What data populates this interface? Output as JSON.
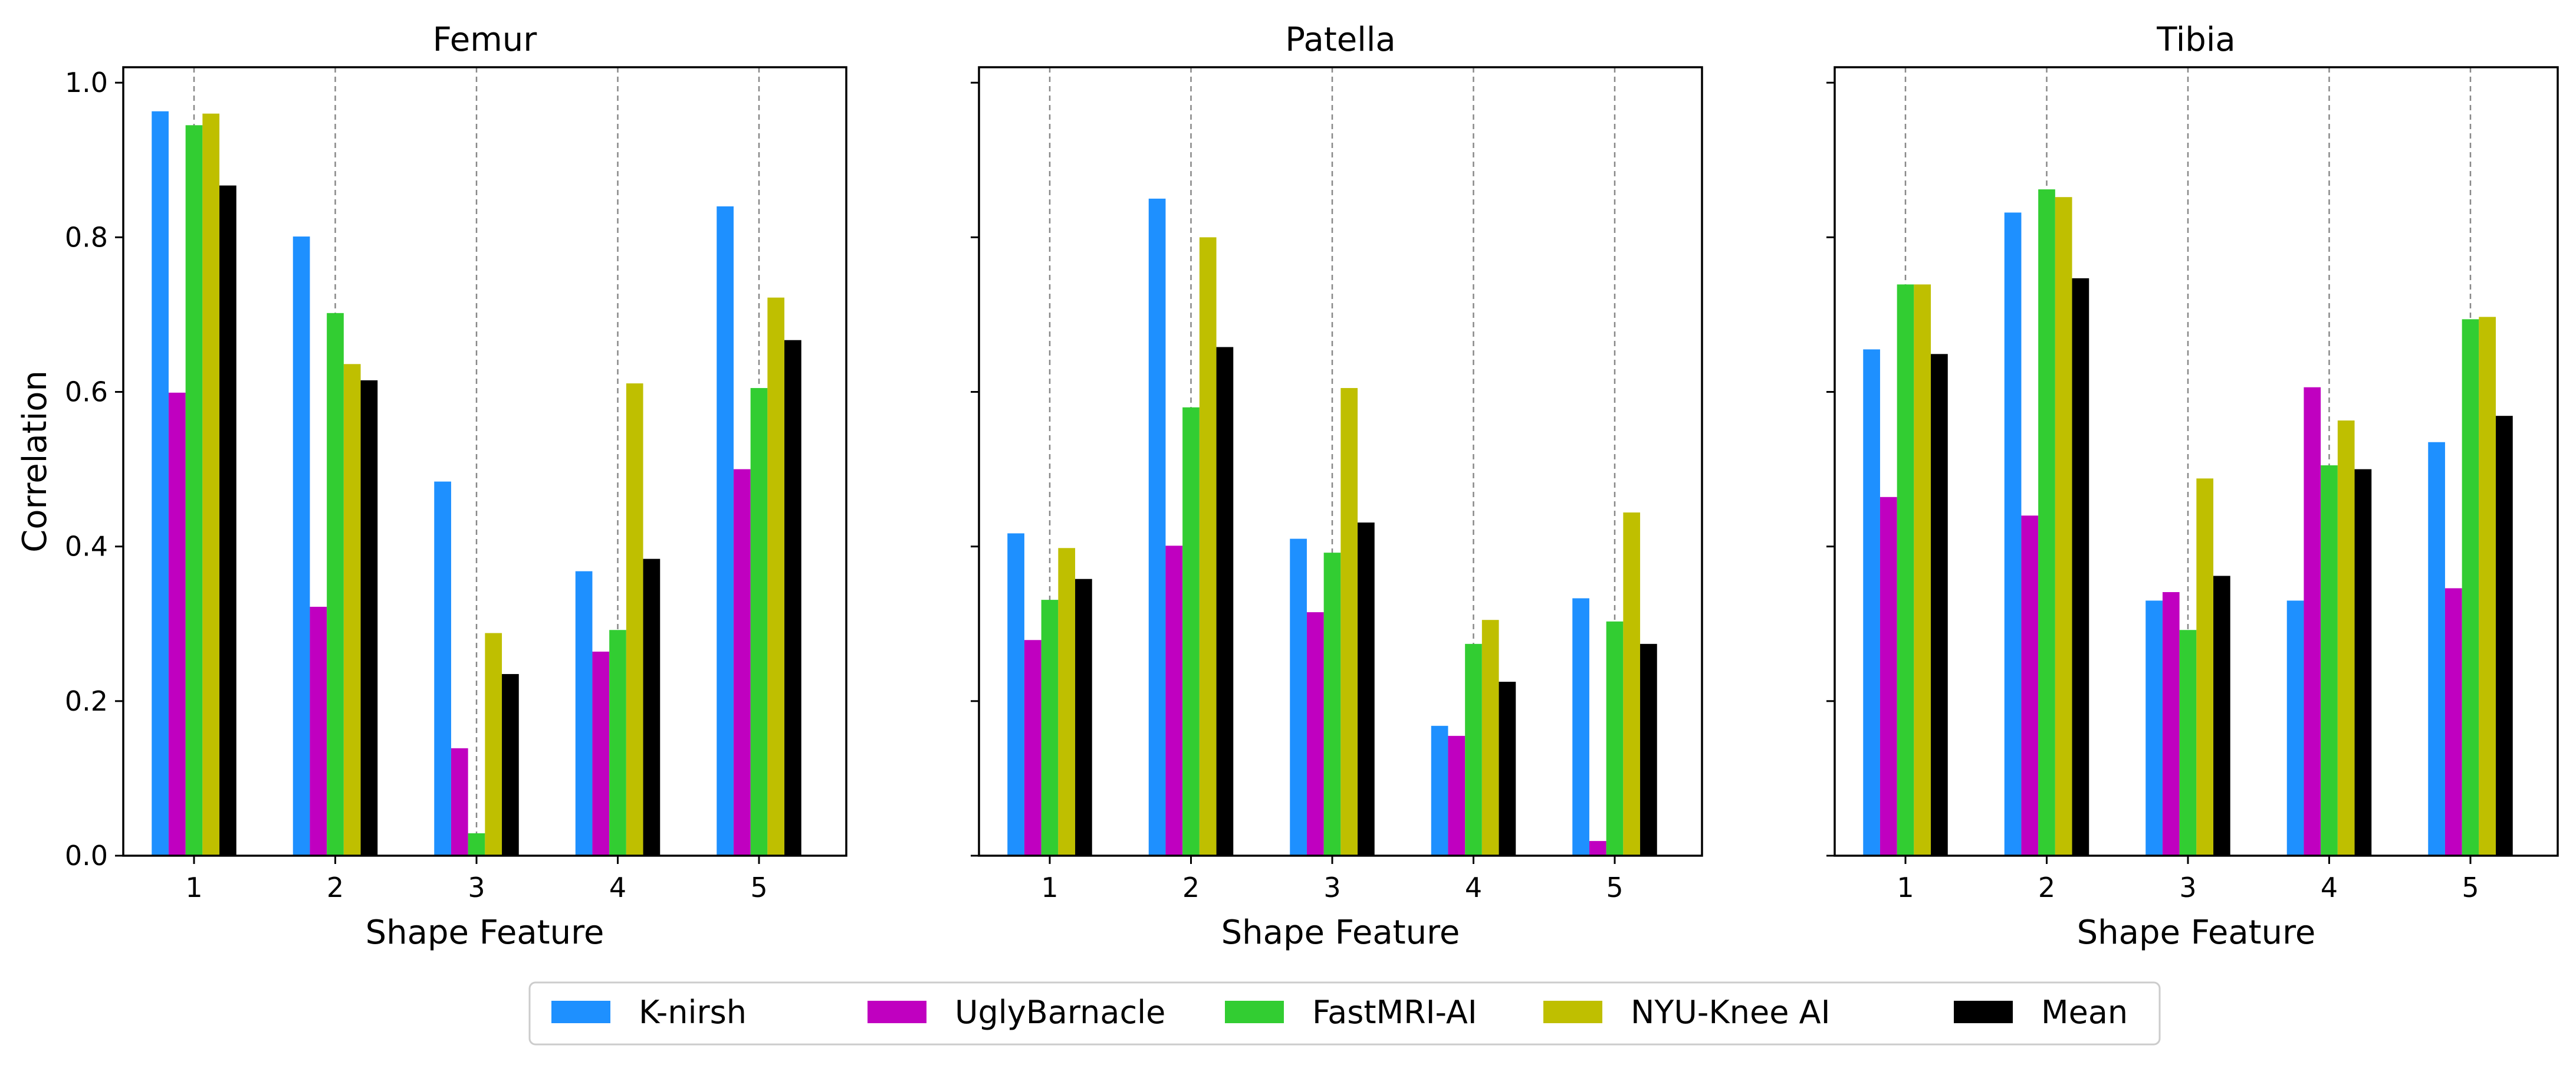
{
  "colors": {
    "K-nirsh": "#1e90ff",
    "UglyBarnacle": "#c000c0",
    "FastMRI-AI": "#32cd32",
    "NYU-Knee AI": "#bfbf00",
    "Mean": "#000000"
  },
  "legend": [
    "K-nirsh",
    "UglyBarnacle",
    "FastMRI-AI",
    "NYU-Knee AI",
    "Mean"
  ],
  "chart_data": [
    {
      "type": "bar",
      "title": "Femur",
      "xlabel": "Shape Feature",
      "ylabel": "Correlation",
      "categories": [
        "1",
        "2",
        "3",
        "4",
        "5"
      ],
      "ylim": [
        0,
        1.02
      ],
      "yticks": [
        "0.0",
        "0.2",
        "0.4",
        "0.6",
        "0.8",
        "1.0"
      ],
      "series": [
        {
          "name": "K-nirsh",
          "values": [
            0.963,
            0.801,
            0.484,
            0.368,
            0.84
          ]
        },
        {
          "name": "UglyBarnacle",
          "values": [
            0.599,
            0.322,
            0.139,
            0.264,
            0.5
          ]
        },
        {
          "name": "FastMRI-AI",
          "values": [
            0.945,
            0.702,
            0.029,
            0.292,
            0.605
          ]
        },
        {
          "name": "NYU-Knee AI",
          "values": [
            0.96,
            0.636,
            0.288,
            0.611,
            0.722
          ]
        },
        {
          "name": "Mean",
          "values": [
            0.867,
            0.615,
            0.235,
            0.384,
            0.667
          ]
        }
      ]
    },
    {
      "type": "bar",
      "title": "Patella",
      "xlabel": "Shape Feature",
      "ylabel": "",
      "categories": [
        "1",
        "2",
        "3",
        "4",
        "5"
      ],
      "ylim": [
        0,
        1.02
      ],
      "yticks": [],
      "series": [
        {
          "name": "K-nirsh",
          "values": [
            0.417,
            0.85,
            0.41,
            0.168,
            0.333
          ]
        },
        {
          "name": "UglyBarnacle",
          "values": [
            0.279,
            0.401,
            0.315,
            0.155,
            0.019
          ]
        },
        {
          "name": "FastMRI-AI",
          "values": [
            0.331,
            0.58,
            0.392,
            0.274,
            0.303
          ]
        },
        {
          "name": "NYU-Knee AI",
          "values": [
            0.398,
            0.8,
            0.605,
            0.305,
            0.444
          ]
        },
        {
          "name": "Mean",
          "values": [
            0.358,
            0.658,
            0.431,
            0.225,
            0.274
          ]
        }
      ]
    },
    {
      "type": "bar",
      "title": "Tibia",
      "xlabel": "Shape Feature",
      "ylabel": "",
      "categories": [
        "1",
        "2",
        "3",
        "4",
        "5"
      ],
      "ylim": [
        0,
        1.02
      ],
      "yticks": [],
      "series": [
        {
          "name": "K-nirsh",
          "values": [
            0.655,
            0.832,
            0.33,
            0.33,
            0.535
          ]
        },
        {
          "name": "UglyBarnacle",
          "values": [
            0.464,
            0.44,
            0.341,
            0.606,
            0.346
          ]
        },
        {
          "name": "FastMRI-AI",
          "values": [
            0.739,
            0.862,
            0.292,
            0.505,
            0.694
          ]
        },
        {
          "name": "NYU-Knee AI",
          "values": [
            0.739,
            0.852,
            0.488,
            0.563,
            0.697
          ]
        },
        {
          "name": "Mean",
          "values": [
            0.649,
            0.747,
            0.362,
            0.5,
            0.569
          ]
        }
      ]
    }
  ]
}
